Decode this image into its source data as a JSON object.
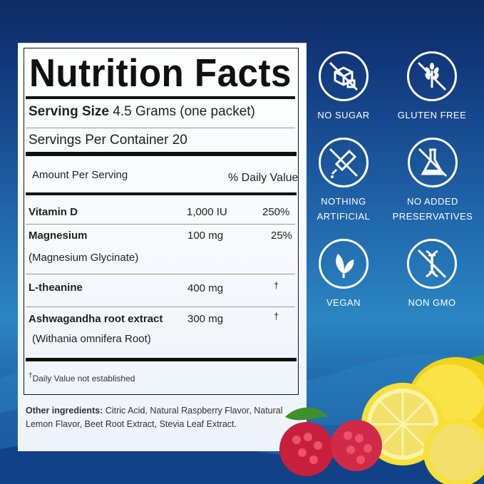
{
  "label": {
    "title": "Nutrition Facts",
    "serving_size_label": "Serving Size",
    "serving_size_value": "4.5 Grams (one packet)",
    "servings_per_container": "Servings Per Container 20",
    "amount_per_serving": "Amount Per Serving",
    "daily_value_header": "% Daily Value",
    "rows": [
      {
        "name": "Vitamin D",
        "sub": "",
        "amount": "1,000 IU",
        "dv": "250%"
      },
      {
        "name": "Magnesium",
        "sub": "(Magnesium Glycinate)",
        "amount": "100 mg",
        "dv": "25%"
      },
      {
        "name": "L-theanine",
        "sub": "",
        "amount": "400 mg",
        "dv": "†"
      },
      {
        "name": "Ashwagandha root extract",
        "sub": "(Withania omnifera Root)",
        "amount": "300 mg",
        "dv": "†"
      }
    ],
    "footnote_mark": "†",
    "footnote": "Daily Value not established"
  },
  "ingredients": {
    "label": "Other ingredients:",
    "text": "Citric Acid, Natural Raspberry Flavor, Natural Lemon Flavor, Beet Root Extract, Stevia Leaf Extract."
  },
  "badges": [
    {
      "icon": "no-sugar-icon",
      "line1": "NO SUGAR",
      "line2": ""
    },
    {
      "icon": "gluten-free-icon",
      "line1": "GLUTEN FREE",
      "line2": ""
    },
    {
      "icon": "nothing-artificial-icon",
      "line1": "NOTHING",
      "line2": "ARTIFICIAL"
    },
    {
      "icon": "no-preservatives-icon",
      "line1": "NO ADDED",
      "line2": "PRESERVATIVES"
    },
    {
      "icon": "vegan-leaf-icon",
      "line1": "VEGAN",
      "line2": ""
    },
    {
      "icon": "non-gmo-dna-icon",
      "line1": "NON GMO",
      "line2": ""
    }
  ],
  "colors": {
    "background": "#1f62a8",
    "badge": "#ffffff",
    "lemon": "#f5d81d",
    "raspberry": "#d92a48"
  }
}
